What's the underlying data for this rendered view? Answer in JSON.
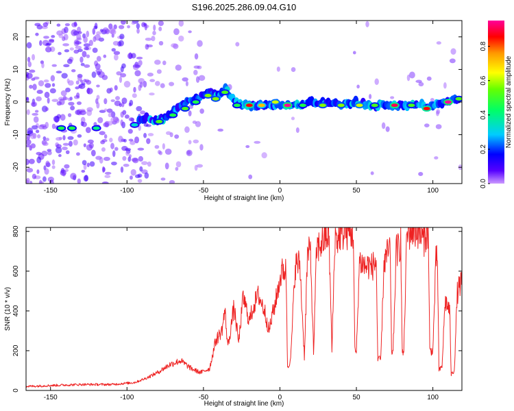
{
  "title": "S196.2025.286.09.04.G10",
  "chart_data": [
    {
      "type": "heatmap",
      "title": "S196.2025.286.09.04.G10",
      "xlabel": "Height of straight line (km)",
      "ylabel": "Frequency (Hz)",
      "xlim": [
        -166,
        119
      ],
      "ylim": [
        -25,
        25
      ],
      "x_ticks": [
        -150,
        -100,
        -50,
        0,
        50,
        100
      ],
      "y_ticks": [
        -20,
        -10,
        0,
        10,
        20
      ],
      "colorbar": {
        "label": "Normalized spectral amplitude",
        "range": [
          0.0,
          0.95
        ],
        "ticks": [
          0.0,
          0.2,
          0.4,
          0.6,
          0.8
        ],
        "colors": [
          "#cc99ff",
          "#5500ff",
          "#0000ff",
          "#00ccff",
          "#00ff66",
          "#66ff00",
          "#ffff00",
          "#ff9900",
          "#ff0000",
          "#ff0099"
        ]
      },
      "ridge": {
        "x": [
          -90,
          -85,
          -80,
          -75,
          -70,
          -65,
          -60,
          -55,
          -50,
          -45,
          -40,
          -35,
          -30,
          -25,
          -20,
          -15,
          -10,
          -5,
          0,
          5,
          10,
          20,
          30,
          40,
          50,
          60,
          70,
          80,
          90,
          100,
          110,
          117
        ],
        "y": [
          -5,
          -5,
          -6,
          -5,
          -3,
          -1,
          0,
          1,
          2,
          3,
          2,
          4,
          0,
          -1,
          -1,
          -1,
          -1,
          -1,
          -1,
          -1,
          -1,
          0,
          0,
          -1,
          0,
          -1,
          -1,
          -1,
          -1,
          -1,
          0,
          1
        ]
      },
      "peaks": [
        {
          "x": -143,
          "y": -8,
          "a": 0.45
        },
        {
          "x": -136,
          "y": -8,
          "a": 0.45
        },
        {
          "x": -120,
          "y": -8,
          "a": 0.4
        },
        {
          "x": -95,
          "y": -7,
          "a": 0.35
        },
        {
          "x": -79,
          "y": -6,
          "a": 0.5
        },
        {
          "x": -70,
          "y": -4,
          "a": 0.45
        },
        {
          "x": -62,
          "y": -2,
          "a": 0.5
        },
        {
          "x": -55,
          "y": 0,
          "a": 0.45
        },
        {
          "x": -47,
          "y": 2,
          "a": 0.55
        },
        {
          "x": -42,
          "y": 1,
          "a": 0.55
        },
        {
          "x": -36,
          "y": 3,
          "a": 0.5
        },
        {
          "x": -28,
          "y": -1,
          "a": 0.45
        },
        {
          "x": -20,
          "y": -1,
          "a": 0.85
        },
        {
          "x": -12,
          "y": -1,
          "a": 0.7
        },
        {
          "x": -3,
          "y": 0,
          "a": 0.6
        },
        {
          "x": 5,
          "y": -1,
          "a": 0.95
        },
        {
          "x": 15,
          "y": -1,
          "a": 0.45
        },
        {
          "x": 28,
          "y": -1,
          "a": 0.55
        },
        {
          "x": 40,
          "y": -1,
          "a": 0.55
        },
        {
          "x": 52,
          "y": -1,
          "a": 0.6
        },
        {
          "x": 62,
          "y": -1,
          "a": 0.5
        },
        {
          "x": 75,
          "y": -1,
          "a": 0.9
        },
        {
          "x": 86,
          "y": -1,
          "a": 0.5
        },
        {
          "x": 96,
          "y": -2,
          "a": 0.85
        },
        {
          "x": 110,
          "y": 0,
          "a": 0.95
        },
        {
          "x": 117,
          "y": 1,
          "a": 0.5
        }
      ]
    },
    {
      "type": "line",
      "xlabel": "Height of straight line (km)",
      "ylabel": "SNR (10 * v/v)",
      "xlim": [
        -166,
        119
      ],
      "ylim": [
        0,
        820
      ],
      "x_ticks": [
        -150,
        -100,
        -50,
        0,
        50,
        100
      ],
      "y_ticks": [
        0,
        200,
        400,
        600,
        800
      ],
      "color": "#ee2222",
      "series": [
        {
          "name": "SNR",
          "x": [
            -166,
            -150,
            -130,
            -110,
            -95,
            -88,
            -80,
            -72,
            -65,
            -58,
            -52,
            -46,
            -42,
            -38,
            -36,
            -34,
            -30,
            -27,
            -24,
            -20,
            -17,
            -14,
            -10,
            -7,
            -5,
            -3,
            0,
            2,
            4,
            5,
            7,
            10,
            13,
            16,
            18,
            20,
            22,
            24,
            27,
            30,
            32,
            34,
            36,
            38,
            40,
            42,
            45,
            48,
            49,
            50,
            52,
            54,
            56,
            58,
            60,
            62,
            63,
            64,
            66,
            68,
            70,
            72,
            73,
            74,
            76,
            78,
            79,
            80,
            81,
            83,
            86,
            88,
            90,
            92,
            94,
            96,
            97,
            98,
            100,
            102,
            103,
            104,
            106,
            108,
            110,
            111,
            112,
            114,
            116,
            119
          ],
          "y": [
            20,
            25,
            30,
            30,
            40,
            60,
            90,
            130,
            150,
            110,
            90,
            110,
            250,
            300,
            400,
            220,
            420,
            240,
            470,
            350,
            430,
            480,
            400,
            300,
            380,
            440,
            560,
            610,
            600,
            120,
            150,
            630,
            640,
            170,
            680,
            700,
            190,
            710,
            740,
            770,
            790,
            200,
            770,
            760,
            800,
            790,
            800,
            790,
            200,
            190,
            650,
            640,
            620,
            630,
            620,
            640,
            650,
            150,
            160,
            640,
            680,
            720,
            200,
            190,
            700,
            720,
            750,
            180,
            200,
            780,
            810,
            800,
            810,
            780,
            760,
            800,
            790,
            200,
            200,
            650,
            660,
            100,
            120,
            450,
            420,
            400,
            80,
            100,
            490,
            560
          ]
        }
      ]
    }
  ]
}
